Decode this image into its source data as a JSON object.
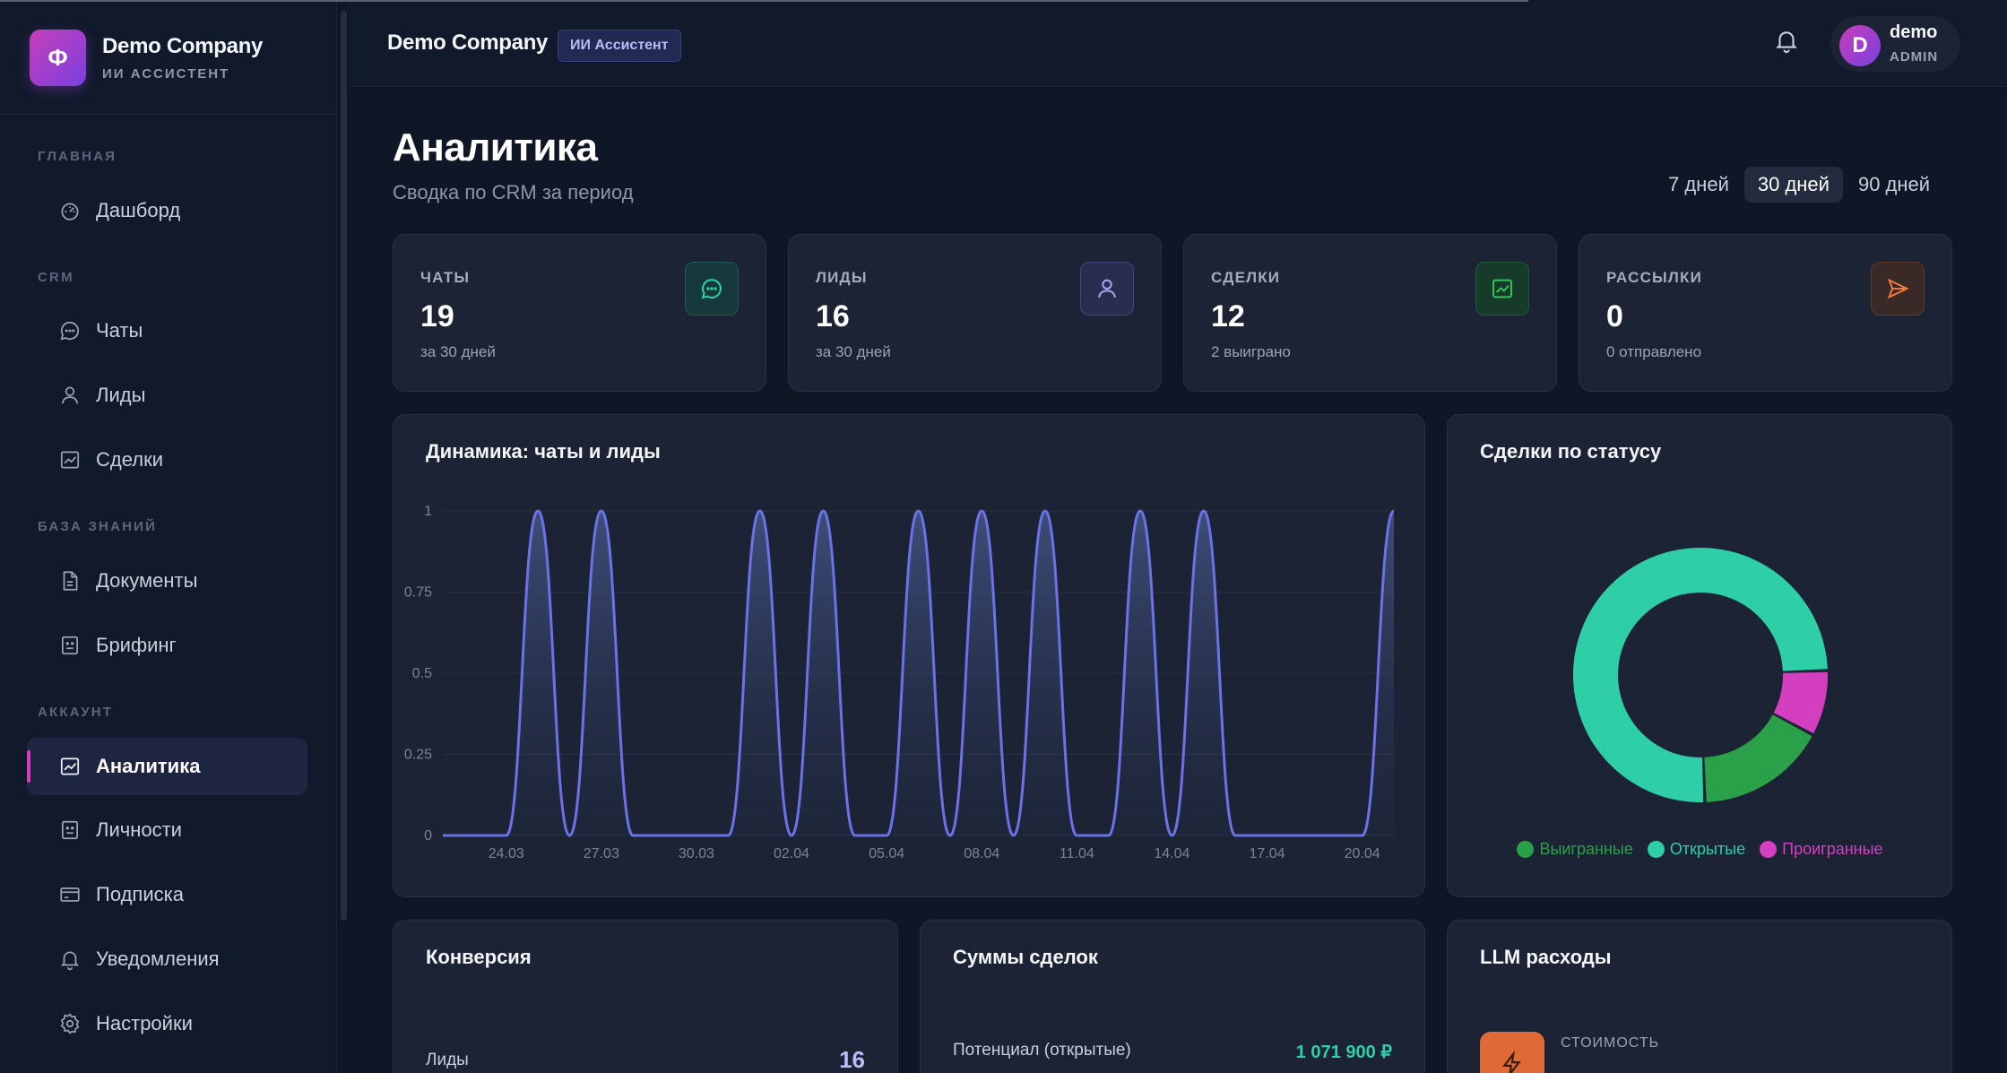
{
  "brand": {
    "logo_letter": "Ф",
    "name": "Demo Company",
    "subtitle": "ИИ АССИСТЕНТ"
  },
  "sidebar": {
    "sections": [
      {
        "label": "ГЛАВНАЯ",
        "items": [
          {
            "label": "Дашборд",
            "icon": "dashboard-icon"
          }
        ]
      },
      {
        "label": "CRM",
        "items": [
          {
            "label": "Чаты",
            "icon": "chat-icon"
          },
          {
            "label": "Лиды",
            "icon": "user-icon"
          },
          {
            "label": "Сделки",
            "icon": "chart-icon"
          }
        ]
      },
      {
        "label": "БАЗА ЗНАНИЙ",
        "items": [
          {
            "label": "Документы",
            "icon": "document-icon"
          },
          {
            "label": "Брифинг",
            "icon": "briefing-icon"
          }
        ]
      },
      {
        "label": "АККАУНТ",
        "items": [
          {
            "label": "Аналитика",
            "icon": "analytics-icon",
            "active": true
          },
          {
            "label": "Личности",
            "icon": "persona-icon"
          },
          {
            "label": "Подписка",
            "icon": "card-icon"
          },
          {
            "label": "Уведомления",
            "icon": "bell-icon"
          },
          {
            "label": "Настройки",
            "icon": "gear-icon"
          }
        ]
      }
    ]
  },
  "topbar": {
    "title": "Demo Company",
    "badge": "ИИ Ассистент",
    "user": {
      "initial": "D",
      "name": "demo",
      "role": "ADMIN"
    }
  },
  "page": {
    "title": "Аналитика",
    "subtitle": "Сводка по CRM за период"
  },
  "period": {
    "options": [
      "7 дней",
      "30 дней",
      "90 дней"
    ],
    "selected": "30 дней"
  },
  "kpis": [
    {
      "label": "ЧАТЫ",
      "value": "19",
      "sub": "за 30 дней",
      "icon": "chat-icon",
      "color": "#2ed3a6"
    },
    {
      "label": "ЛИДЫ",
      "value": "16",
      "sub": "за 30 дней",
      "icon": "user-icon",
      "color": "#a5a9f5"
    },
    {
      "label": "СДЕЛКИ",
      "value": "12",
      "sub": "2 выиграно",
      "icon": "trend-icon",
      "color": "#33c45c"
    },
    {
      "label": "РАССЫЛКИ",
      "value": "0",
      "sub": "0 отправлено",
      "icon": "send-icon",
      "color": "#ef7a3c"
    }
  ],
  "dynamics": {
    "title": "Динамика: чаты и лиды",
    "chart_data": {
      "type": "area",
      "x": [
        "22.03",
        "23.03",
        "24.03",
        "25.03",
        "26.03",
        "27.03",
        "28.03",
        "29.03",
        "30.03",
        "31.03",
        "01.04",
        "02.04",
        "03.04",
        "04.04",
        "05.04",
        "06.04",
        "07.04",
        "08.04",
        "09.04",
        "10.04",
        "11.04",
        "12.04",
        "13.04",
        "14.04",
        "15.04",
        "16.04",
        "17.04",
        "18.04",
        "19.04",
        "20.04",
        "21.04"
      ],
      "tick_labels": [
        "24.03",
        "27.03",
        "30.03",
        "02.04",
        "05.04",
        "08.04",
        "11.04",
        "14.04",
        "17.04",
        "20.04"
      ],
      "series": [
        {
          "values": [
            0,
            0,
            0,
            1,
            0,
            1,
            0,
            0,
            0,
            0,
            1,
            0,
            1,
            0,
            0,
            1,
            0,
            1,
            0,
            1,
            0,
            0,
            1,
            0,
            1,
            0,
            0,
            0,
            0,
            0,
            1
          ]
        }
      ],
      "y_ticks": [
        "0",
        "0.25",
        "0.5",
        "0.75",
        "1"
      ],
      "ylim": [
        0,
        1
      ],
      "grid": true,
      "color": "#6a72e6"
    }
  },
  "status": {
    "title": "Сделки по статусу",
    "chart_data": {
      "type": "pie",
      "categories": [
        "Выигранные",
        "Открытые",
        "Проигранные"
      ],
      "values": [
        2,
        9,
        1
      ],
      "colors": [
        "#2aa148",
        "#2ecfa7",
        "#d43fbf"
      ]
    }
  },
  "conversion": {
    "title": "Конверсия",
    "rows": [
      {
        "label": "Лиды",
        "value": "16"
      }
    ]
  },
  "sums": {
    "title": "Суммы сделок",
    "rows": [
      {
        "label": "Потенциал (открытые)",
        "value": "1 071 900 ₽"
      }
    ]
  },
  "llm": {
    "title": "LLM расходы",
    "cost_label": "СТОИМОСТЬ"
  }
}
